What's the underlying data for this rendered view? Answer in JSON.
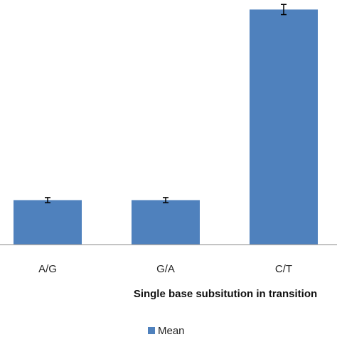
{
  "chart_data": {
    "type": "bar",
    "categories": [
      "A/G",
      "G/A",
      "C/T"
    ],
    "series": [
      {
        "name": "Mean",
        "values": [
          7,
          7,
          37
        ],
        "error": [
          0.4,
          0.4,
          0.8
        ],
        "color": "#4f81bd"
      }
    ],
    "title": "",
    "xlabel": "Single base subsitution  in transition",
    "ylabel": "",
    "ylim": [
      0,
      38.5
    ],
    "grid": false,
    "legend_position": "bottom"
  }
}
